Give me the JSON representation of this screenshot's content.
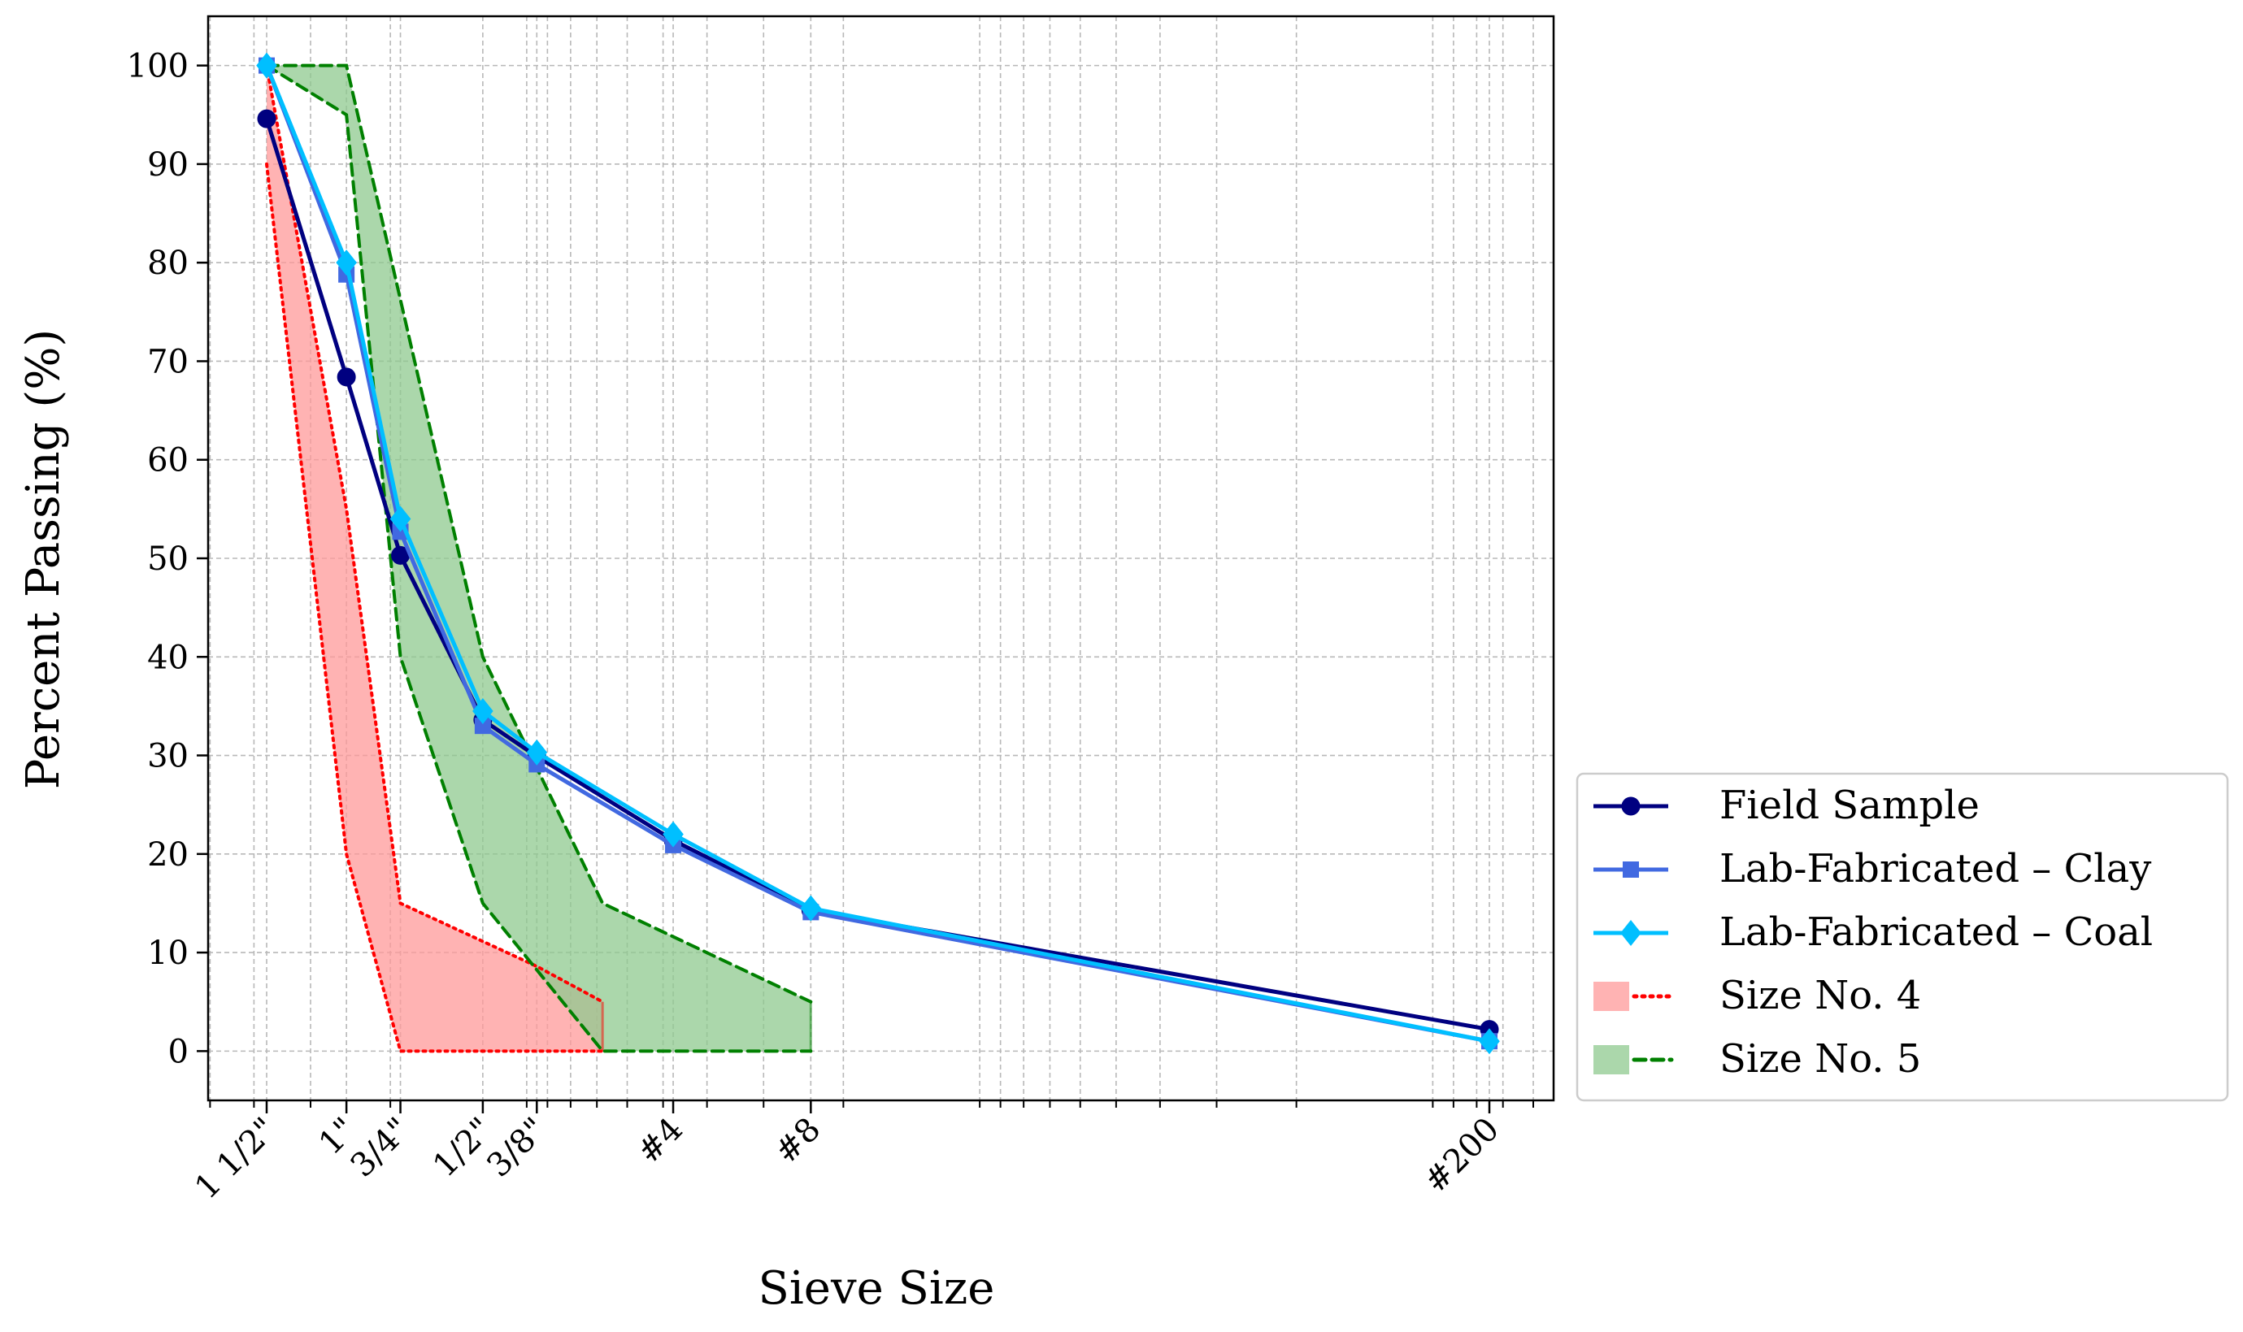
{
  "chart_data": {
    "type": "line",
    "title": "",
    "xlabel": "Sieve Size",
    "ylabel": "Percent Passing (%)",
    "x_scale": "log (sieve opening, mm)",
    "x_ticks": [
      {
        "label": "1 1/2\"",
        "mm": 37.5
      },
      {
        "label": "1\"",
        "mm": 25.0
      },
      {
        "label": "3/4\"",
        "mm": 19.0
      },
      {
        "label": "1/2\"",
        "mm": 12.5
      },
      {
        "label": "3/8\"",
        "mm": 9.5
      },
      {
        "label": "#4",
        "mm": 4.75
      },
      {
        "label": "#8",
        "mm": 2.36
      },
      {
        "label": "#200",
        "mm": 0.075
      }
    ],
    "y_ticks": [
      0,
      10,
      20,
      30,
      40,
      50,
      60,
      70,
      80,
      90,
      100
    ],
    "ylim": [
      -5,
      105
    ],
    "grid": true,
    "legend_placement": "outside-lower-right",
    "series": [
      {
        "name": "Field Sample",
        "kind": "line",
        "color": "#000080",
        "marker": "circle",
        "points": [
          [
            37.5,
            94.6
          ],
          [
            25.0,
            68.4
          ],
          [
            19.0,
            50.3
          ],
          [
            12.5,
            33.6
          ],
          [
            9.5,
            29.9
          ],
          [
            4.75,
            21.4
          ],
          [
            2.36,
            14.3
          ],
          [
            0.075,
            2.2
          ]
        ]
      },
      {
        "name": "Lab-Fabricated – Clay",
        "kind": "line",
        "color": "#4169e1",
        "marker": "square",
        "points": [
          [
            37.5,
            100
          ],
          [
            25.0,
            78.8
          ],
          [
            19.0,
            52.7
          ],
          [
            12.5,
            33.0
          ],
          [
            9.5,
            29.1
          ],
          [
            4.75,
            20.9
          ],
          [
            2.36,
            14.1
          ],
          [
            0.075,
            1.0
          ]
        ]
      },
      {
        "name": "Lab-Fabricated – Coal",
        "kind": "line",
        "color": "#00bfff",
        "marker": "diamond",
        "points": [
          [
            37.5,
            100
          ],
          [
            25.0,
            80.0
          ],
          [
            19.0,
            54.0
          ],
          [
            12.5,
            34.5
          ],
          [
            9.5,
            30.3
          ],
          [
            4.75,
            22.0
          ],
          [
            2.36,
            14.5
          ],
          [
            0.075,
            1.0
          ]
        ]
      },
      {
        "name": "Size No. 4",
        "kind": "band",
        "fill": "#ff9999",
        "edge": "#ff0000",
        "edge_style": "dotted",
        "upper": [
          [
            37.5,
            100
          ],
          [
            25.0,
            55
          ],
          [
            19.0,
            15
          ],
          [
            9.5,
            8.6
          ],
          [
            6.8,
            5
          ]
        ],
        "lower": [
          [
            37.5,
            90
          ],
          [
            25.0,
            20
          ],
          [
            19.0,
            0
          ],
          [
            6.8,
            0
          ]
        ]
      },
      {
        "name": "Size No. 5",
        "kind": "band",
        "fill": "#8fc98f",
        "edge": "#008000",
        "edge_style": "dashed",
        "upper": [
          [
            37.5,
            100
          ],
          [
            25.0,
            100
          ],
          [
            12.5,
            40
          ],
          [
            6.8,
            15
          ],
          [
            2.36,
            5
          ]
        ],
        "lower": [
          [
            37.5,
            100
          ],
          [
            25.0,
            95
          ],
          [
            19.0,
            40
          ],
          [
            12.5,
            15
          ],
          [
            6.8,
            0
          ],
          [
            2.36,
            0
          ]
        ]
      }
    ]
  }
}
